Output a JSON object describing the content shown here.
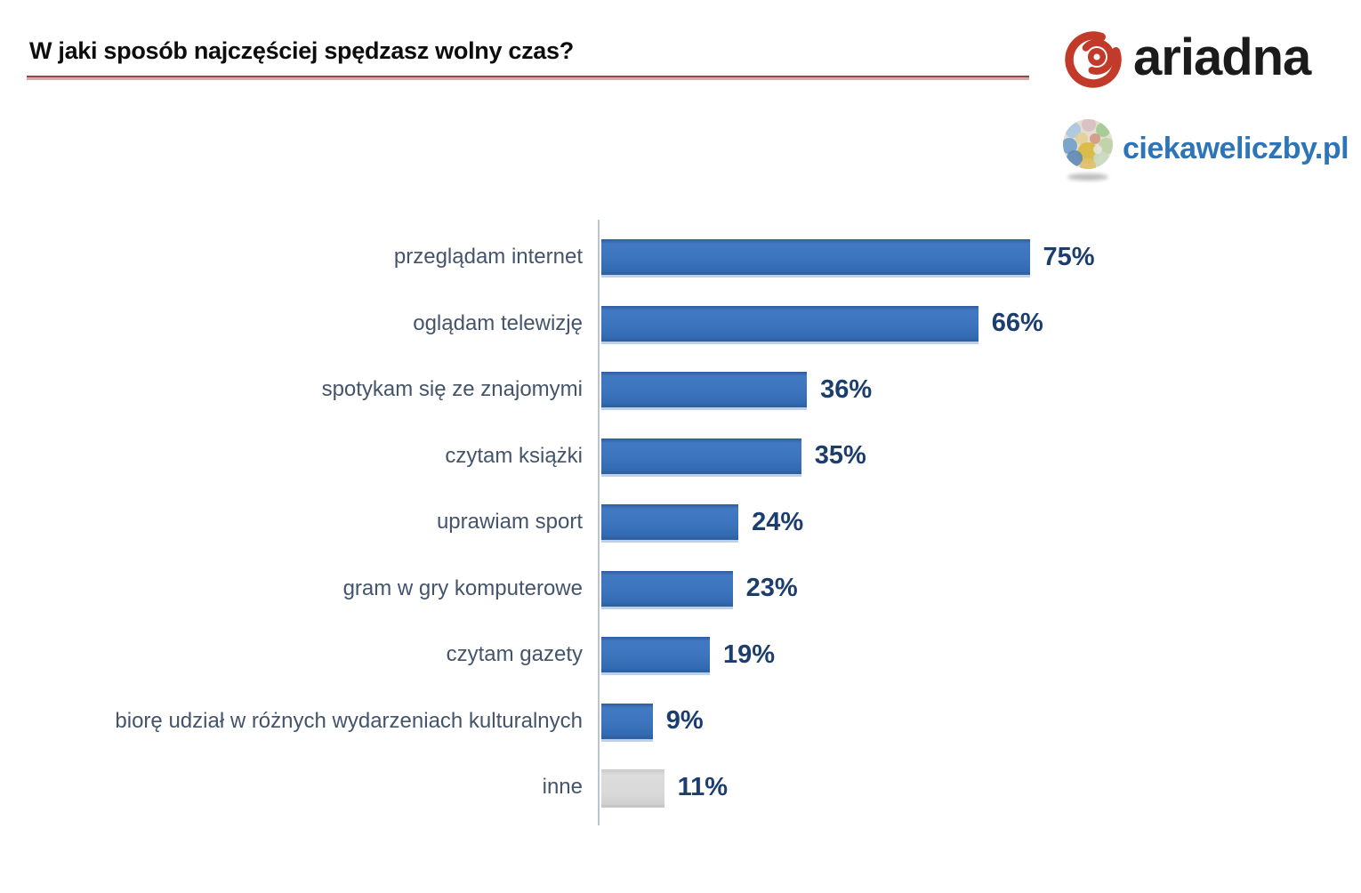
{
  "header": {
    "title": "W jaki sposób najczęściej spędzasz wolny czas?"
  },
  "branding": {
    "ariadna_logo_text": "ariadna",
    "ciekaweliczby_logo_text": "ciekaweliczby.pl"
  },
  "colors": {
    "bar_blue": "#3B72BC",
    "bar_gray": "#D9D9D9",
    "value_label": "#1C3E6E",
    "category_label": "#44546A",
    "axis_line": "#BCC3CB",
    "title_underline_dark": "#8E4A4B",
    "title_underline_light": "#D3ABAC",
    "ariadna_red": "#C23B2A",
    "ciekaweliczby_blue": "#2E74B8"
  },
  "chart_data": {
    "type": "bar",
    "orientation": "horizontal",
    "title": "W jaki sposób najczęściej spędzasz wolny czas?",
    "categories": [
      "przeglądam internet",
      "oglądam telewizję",
      "spotykam się ze znajomymi",
      "czytam książki",
      "uprawiam sport",
      "gram w gry komputerowe",
      "czytam gazety",
      "biorę udział w różnych wydarzeniach kulturalnych",
      "inne"
    ],
    "values": [
      75,
      66,
      36,
      35,
      24,
      23,
      19,
      9,
      11
    ],
    "value_labels": [
      "75%",
      "66%",
      "36%",
      "35%",
      "24%",
      "23%",
      "19%",
      "9%",
      "11%"
    ],
    "bar_colors": [
      "blue",
      "blue",
      "blue",
      "blue",
      "blue",
      "blue",
      "blue",
      "blue",
      "gray"
    ],
    "xlabel": "",
    "ylabel": "",
    "xlim": [
      0,
      100
    ],
    "grid": false,
    "legend": false,
    "data_labels": true
  }
}
